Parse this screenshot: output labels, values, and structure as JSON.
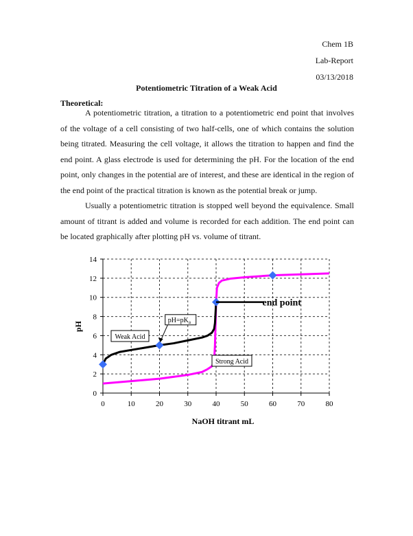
{
  "header": {
    "course": "Chem 1B",
    "type": "Lab-Report",
    "date": "03/13/2018"
  },
  "title": "Potentiometric Titration of a Weak Acid",
  "section": "Theoretical:",
  "paragraphs": [
    "A potentiometric titration, a titration to a potentiometric end point that involves of the voltage of a cell consisting of two half-cells, one of which contains the solution being titrated. Measuring the cell voltage, it allows the titration to happen and find the end point. A glass electrode is used for determining the pH. For the location of the end point, only changes in the potential are of interest, and these are identical in the region of the end point of the practical titration is known as the potential break or jump.",
    "Usually a potentiometric titration is stopped well beyond the equivalence. Small amount of titrant is added and volume is recorded for each addition. The end point can be located graphically after plotting pH vs. volume of titrant."
  ],
  "chart_data": {
    "type": "line",
    "xlabel": "NaOH titrant  mL",
    "ylabel": "pH",
    "xlim": [
      0,
      80
    ],
    "ylim": [
      0,
      14
    ],
    "xticks": [
      0,
      10,
      20,
      30,
      40,
      50,
      60,
      70,
      80
    ],
    "yticks": [
      0,
      2,
      4,
      6,
      8,
      10,
      12,
      14
    ],
    "grid": true,
    "series": [
      {
        "name": "Weak Acid",
        "color": "#000000",
        "x": [
          0,
          1,
          3,
          6,
          10,
          15,
          20,
          25,
          30,
          35,
          37,
          38.5,
          39.3,
          39.6,
          40
        ],
        "y": [
          3,
          3.6,
          4,
          4.3,
          4.5,
          4.75,
          5,
          5.2,
          5.5,
          5.8,
          6,
          6.3,
          6.7,
          7.3,
          9.5
        ]
      },
      {
        "name": "Strong Acid",
        "color": "#ff00ff",
        "x": [
          0,
          10,
          20,
          30,
          35,
          37,
          38.5,
          39.3,
          39.6,
          40,
          40.3,
          41,
          42,
          45,
          50,
          60,
          70,
          80
        ],
        "y": [
          1,
          1.25,
          1.5,
          1.9,
          2.2,
          2.5,
          2.8,
          3.3,
          5,
          9.5,
          11,
          11.5,
          11.75,
          11.95,
          12.1,
          12.3,
          12.4,
          12.5
        ]
      }
    ],
    "markers": {
      "color": "#3a6ff7",
      "x": [
        0,
        20,
        40,
        60
      ],
      "y": [
        3,
        5,
        9.5,
        12.3
      ]
    },
    "annotations": {
      "end_point": "end point",
      "pka_prefix": "pH=pK",
      "pka_sub": "a",
      "weak": "Weak Acid",
      "strong": "Strong Acid"
    }
  }
}
